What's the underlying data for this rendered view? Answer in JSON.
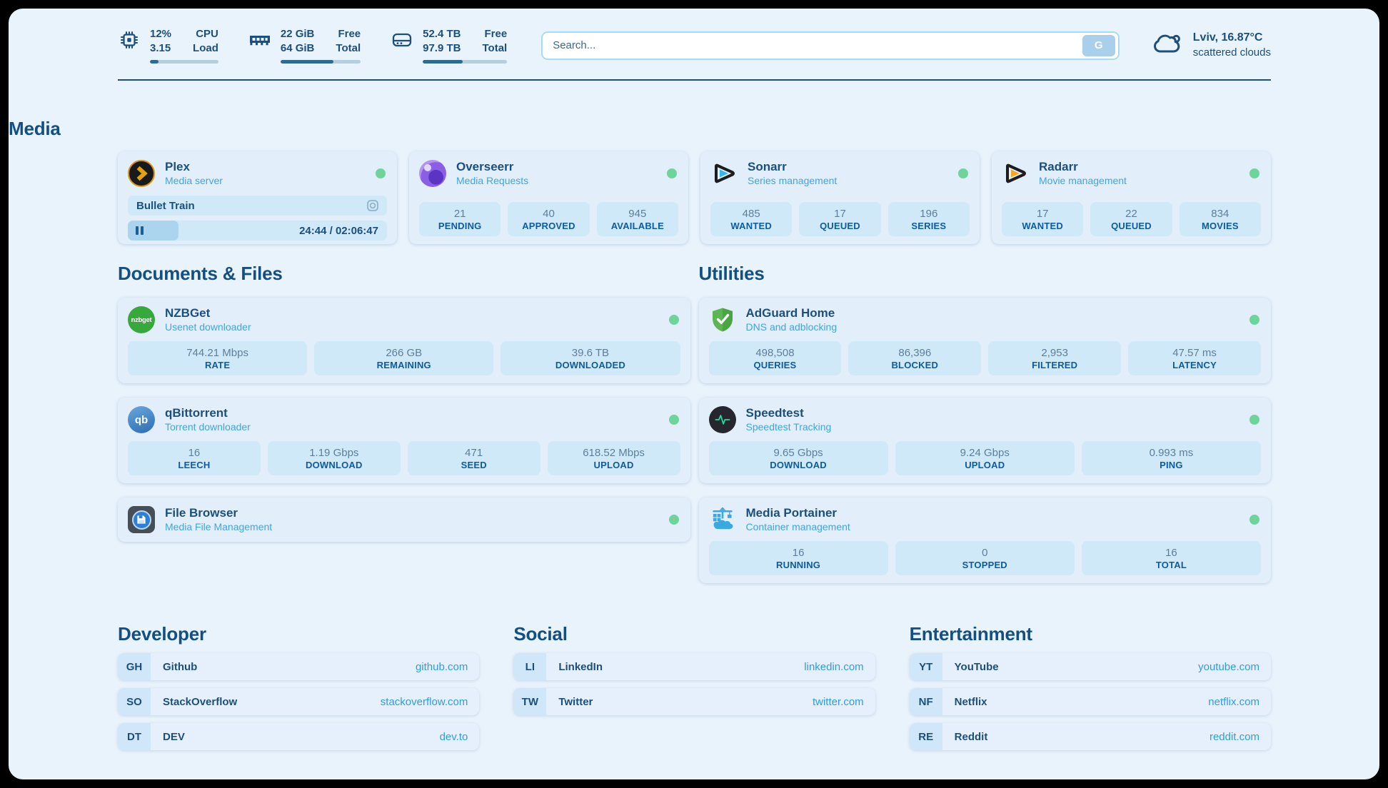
{
  "header": {
    "system_widgets": [
      {
        "values": [
          "12%",
          "3.15"
        ],
        "labels": [
          "CPU",
          "Load"
        ],
        "progress_pct": 12
      },
      {
        "values": [
          "22 GiB",
          "64 GiB"
        ],
        "labels": [
          "Free",
          "Total"
        ],
        "progress_pct": 66
      },
      {
        "values": [
          "52.4 TB",
          "97.9 TB"
        ],
        "labels": [
          "Free",
          "Total"
        ],
        "progress_pct": 47
      }
    ],
    "search": {
      "placeholder": "Search...",
      "engine_button": "G"
    },
    "weather": {
      "line1": "Lviv, 16.87°C",
      "line2": "scattered clouds"
    }
  },
  "media": {
    "heading": "Media",
    "plex": {
      "title": "Plex",
      "subtitle": "Media server",
      "now_playing": "Bullet Train",
      "time": "24:44 / 02:06:47",
      "progress_pct": 19.5
    },
    "overseerr": {
      "title": "Overseerr",
      "subtitle": "Media Requests",
      "stats": [
        {
          "value": "21",
          "label": "PENDING"
        },
        {
          "value": "40",
          "label": "APPROVED"
        },
        {
          "value": "945",
          "label": "AVAILABLE"
        }
      ]
    },
    "sonarr": {
      "title": "Sonarr",
      "subtitle": "Series management",
      "stats": [
        {
          "value": "485",
          "label": "WANTED"
        },
        {
          "value": "17",
          "label": "QUEUED"
        },
        {
          "value": "196",
          "label": "SERIES"
        }
      ]
    },
    "radarr": {
      "title": "Radarr",
      "subtitle": "Movie management",
      "stats": [
        {
          "value": "17",
          "label": "WANTED"
        },
        {
          "value": "22",
          "label": "QUEUED"
        },
        {
          "value": "834",
          "label": "MOVIES"
        }
      ]
    }
  },
  "documents": {
    "heading": "Documents & Files",
    "nzbget": {
      "title": "NZBGet",
      "subtitle": "Usenet downloader",
      "icon_text": "nzbget",
      "stats": [
        {
          "value": "744.21 Mbps",
          "label": "RATE"
        },
        {
          "value": "266 GB",
          "label": "REMAINING"
        },
        {
          "value": "39.6 TB",
          "label": "DOWNLOADED"
        }
      ]
    },
    "qbittorrent": {
      "title": "qBittorrent",
      "subtitle": "Torrent downloader",
      "icon_text": "qb",
      "stats": [
        {
          "value": "16",
          "label": "LEECH"
        },
        {
          "value": "1.19 Gbps",
          "label": "DOWNLOAD"
        },
        {
          "value": "471",
          "label": "SEED"
        },
        {
          "value": "618.52 Mbps",
          "label": "UPLOAD"
        }
      ]
    },
    "filebrowser": {
      "title": "File Browser",
      "subtitle": "Media File Management"
    }
  },
  "utilities": {
    "heading": "Utilities",
    "adguard": {
      "title": "AdGuard Home",
      "subtitle": "DNS and adblocking",
      "stats": [
        {
          "value": "498,508",
          "label": "QUERIES"
        },
        {
          "value": "86,396",
          "label": "BLOCKED"
        },
        {
          "value": "2,953",
          "label": "FILTERED"
        },
        {
          "value": "47.57 ms",
          "label": "LATENCY"
        }
      ]
    },
    "speedtest": {
      "title": "Speedtest",
      "subtitle": "Speedtest Tracking",
      "stats": [
        {
          "value": "9.65 Gbps",
          "label": "DOWNLOAD"
        },
        {
          "value": "9.24 Gbps",
          "label": "UPLOAD"
        },
        {
          "value": "0.993 ms",
          "label": "PING"
        }
      ]
    },
    "portainer": {
      "title": "Media Portainer",
      "subtitle": "Container management",
      "stats": [
        {
          "value": "16",
          "label": "RUNNING"
        },
        {
          "value": "0",
          "label": "STOPPED"
        },
        {
          "value": "16",
          "label": "TOTAL"
        }
      ]
    }
  },
  "bookmarks": {
    "developer": {
      "heading": "Developer",
      "items": [
        {
          "abbr": "GH",
          "name": "Github",
          "url": "github.com"
        },
        {
          "abbr": "SO",
          "name": "StackOverflow",
          "url": "stackoverflow.com"
        },
        {
          "abbr": "DT",
          "name": "DEV",
          "url": "dev.to"
        }
      ]
    },
    "social": {
      "heading": "Social",
      "items": [
        {
          "abbr": "LI",
          "name": "LinkedIn",
          "url": "linkedin.com"
        },
        {
          "abbr": "TW",
          "name": "Twitter",
          "url": "twitter.com"
        }
      ]
    },
    "entertainment": {
      "heading": "Entertainment",
      "items": [
        {
          "abbr": "YT",
          "name": "YouTube",
          "url": "youtube.com"
        },
        {
          "abbr": "NF",
          "name": "Netflix",
          "url": "netflix.com"
        },
        {
          "abbr": "RE",
          "name": "Reddit",
          "url": "reddit.com"
        }
      ]
    }
  },
  "colors": {
    "page_background": "#e9f3fc",
    "card": "#e2eefa",
    "stat_box": "#cfe9f9",
    "heading": "#134f82",
    "subtitle": "#41a4e8",
    "link": "#2f9ce8",
    "online_dot": "#6fd49b",
    "navy": "#1c4f7d"
  }
}
